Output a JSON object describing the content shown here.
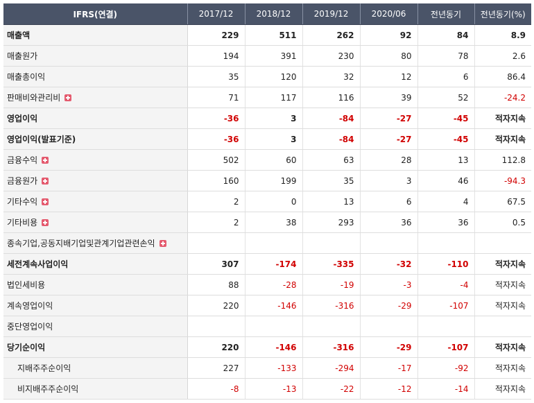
{
  "table": {
    "headers": [
      "IFRS(연결)",
      "2017/12",
      "2018/12",
      "2019/12",
      "2020/06",
      "전년동기",
      "전년동기(%)"
    ],
    "rows": [
      {
        "label": "매출액",
        "values": [
          "229",
          "511",
          "262",
          "92",
          "84",
          "8.9"
        ],
        "bold": true,
        "expand": false,
        "sub": false
      },
      {
        "label": "매출원가",
        "values": [
          "194",
          "391",
          "230",
          "80",
          "78",
          "2.6"
        ],
        "bold": false,
        "expand": false,
        "sub": false
      },
      {
        "label": "매출총이익",
        "values": [
          "35",
          "120",
          "32",
          "12",
          "6",
          "86.4"
        ],
        "bold": false,
        "expand": false,
        "sub": false
      },
      {
        "label": "판매비와관리비",
        "values": [
          "71",
          "117",
          "116",
          "39",
          "52",
          "-24.2"
        ],
        "bold": false,
        "expand": true,
        "sub": false
      },
      {
        "label": "영업이익",
        "values": [
          "-36",
          "3",
          "-84",
          "-27",
          "-45",
          "적자지속"
        ],
        "bold": true,
        "expand": false,
        "sub": false
      },
      {
        "label": "영업이익(발표기준)",
        "values": [
          "-36",
          "3",
          "-84",
          "-27",
          "-45",
          "적자지속"
        ],
        "bold": true,
        "expand": false,
        "sub": false
      },
      {
        "label": "금융수익",
        "values": [
          "502",
          "60",
          "63",
          "28",
          "13",
          "112.8"
        ],
        "bold": false,
        "expand": true,
        "sub": false
      },
      {
        "label": "금융원가",
        "values": [
          "160",
          "199",
          "35",
          "3",
          "46",
          "-94.3"
        ],
        "bold": false,
        "expand": true,
        "sub": false
      },
      {
        "label": "기타수익",
        "values": [
          "2",
          "0",
          "13",
          "6",
          "4",
          "67.5"
        ],
        "bold": false,
        "expand": true,
        "sub": false
      },
      {
        "label": "기타비용",
        "values": [
          "2",
          "38",
          "293",
          "36",
          "36",
          "0.5"
        ],
        "bold": false,
        "expand": true,
        "sub": false
      },
      {
        "label": "종속기업,공동지배기업및관계기업관련손익",
        "values": [
          "",
          "",
          "",
          "",
          "",
          ""
        ],
        "bold": false,
        "expand": true,
        "sub": false
      },
      {
        "label": "세전계속사업이익",
        "values": [
          "307",
          "-174",
          "-335",
          "-32",
          "-110",
          "적자지속"
        ],
        "bold": true,
        "expand": false,
        "sub": false
      },
      {
        "label": "법인세비용",
        "values": [
          "88",
          "-28",
          "-19",
          "-3",
          "-4",
          "적자지속"
        ],
        "bold": false,
        "expand": false,
        "sub": false
      },
      {
        "label": "계속영업이익",
        "values": [
          "220",
          "-146",
          "-316",
          "-29",
          "-107",
          "적자지속"
        ],
        "bold": false,
        "expand": false,
        "sub": false
      },
      {
        "label": "중단영업이익",
        "values": [
          "",
          "",
          "",
          "",
          "",
          ""
        ],
        "bold": false,
        "expand": false,
        "sub": false
      },
      {
        "label": "당기순이익",
        "values": [
          "220",
          "-146",
          "-316",
          "-29",
          "-107",
          "적자지속"
        ],
        "bold": true,
        "expand": false,
        "sub": false
      },
      {
        "label": "지배주주순이익",
        "values": [
          "227",
          "-133",
          "-294",
          "-17",
          "-92",
          "적자지속"
        ],
        "bold": false,
        "expand": false,
        "sub": true
      },
      {
        "label": "비지배주주순이익",
        "values": [
          "-8",
          "-13",
          "-22",
          "-12",
          "-14",
          "적자지속"
        ],
        "bold": false,
        "expand": false,
        "sub": true
      }
    ]
  },
  "colors": {
    "header_bg": "#4a5468",
    "negative": "#d10000",
    "label_bg": "#f4f4f4",
    "expand_icon": "#e45a6e"
  },
  "icons": {
    "expand": "plus-square-icon"
  }
}
